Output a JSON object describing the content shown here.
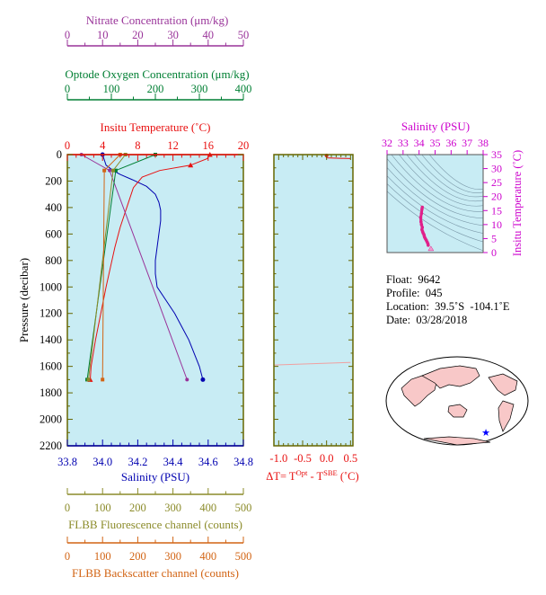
{
  "colors": {
    "nitrate": "#993399",
    "oxygen": "#007f33",
    "temperature": "#e81010",
    "salinity": "#0000b0",
    "fluorescence": "#8b8b2a",
    "backscatter": "#d26414",
    "ts_axis": "#cc00cc",
    "plot_bg": "#c8ecf4",
    "frame": "#666600"
  },
  "axes": {
    "nitrate": {
      "label": "Nitrate Concentration (μm/kg)",
      "ticks": [
        "0",
        "10",
        "20",
        "30",
        "40",
        "50"
      ]
    },
    "oxygen": {
      "label": "Optode Oxygen Concentration (μm/kg)",
      "ticks": [
        "0",
        "100",
        "200",
        "300",
        "400"
      ]
    },
    "temperature": {
      "label": "Insitu Temperature (˚C)",
      "ticks": [
        "0",
        "4",
        "8",
        "12",
        "16",
        "20"
      ]
    },
    "pressure": {
      "label": "Pressure (decibar)",
      "ticks": [
        "0",
        "200",
        "400",
        "600",
        "800",
        "1000",
        "1200",
        "1400",
        "1600",
        "1800",
        "2000",
        "2200"
      ]
    },
    "salinity": {
      "label": "Salinity (PSU)",
      "ticks": [
        "33.8",
        "34.0",
        "34.2",
        "34.4",
        "34.6",
        "34.8"
      ]
    },
    "fluorescence": {
      "label": "FLBB Fluorescence channel (counts)",
      "ticks": [
        "0",
        "100",
        "200",
        "300",
        "400",
        "500"
      ]
    },
    "backscatter": {
      "label": "FLBB Backscatter channel (counts)",
      "ticks": [
        "0",
        "100",
        "200",
        "300",
        "400",
        "500"
      ]
    },
    "delta_t": {
      "label": "ΔT= T",
      "sup1": "Opt",
      "mid": " - T",
      "sup2": "SBE",
      "unit": " (˚C)",
      "ticks": [
        "-1.0",
        "-0.5",
        "0.0",
        "0.5"
      ]
    },
    "ts_salinity": {
      "label": "Salinity (PSU)",
      "ticks": [
        "32",
        "33",
        "34",
        "35",
        "36",
        "37",
        "38"
      ]
    },
    "ts_temperature": {
      "label": "Insitu Temperature (˚C)",
      "ticks": [
        "0",
        "5",
        "10",
        "15",
        "20",
        "25",
        "30",
        "35"
      ]
    }
  },
  "info": {
    "float": "Float:  9642",
    "profile": "Profile:  045",
    "location": "Location:  39.5˚S  -104.1˚E",
    "date": "Date:  03/28/2018"
  },
  "chart_data": [
    {
      "type": "line",
      "title": "",
      "ylabel": "Pressure (decibar)",
      "ylim": [
        2200,
        0
      ],
      "series": [
        {
          "name": "Salinity (PSU)",
          "xlim": [
            33.8,
            34.8
          ],
          "points": [
            [
              34.0,
              0
            ],
            [
              34.01,
              40
            ],
            [
              34.02,
              80
            ],
            [
              34.06,
              120
            ],
            [
              34.1,
              150
            ],
            [
              34.17,
              190
            ],
            [
              34.25,
              240
            ],
            [
              34.3,
              300
            ],
            [
              34.32,
              360
            ],
            [
              34.33,
              420
            ],
            [
              34.33,
              500
            ],
            [
              34.32,
              600
            ],
            [
              34.31,
              700
            ],
            [
              34.3,
              800
            ],
            [
              34.3,
              900
            ],
            [
              34.31,
              1000
            ],
            [
              34.36,
              1100
            ],
            [
              34.41,
              1200
            ],
            [
              34.45,
              1300
            ],
            [
              34.49,
              1400
            ],
            [
              34.52,
              1500
            ],
            [
              34.55,
              1600
            ],
            [
              34.57,
              1700
            ]
          ]
        },
        {
          "name": "Insitu Temperature (˚C)",
          "xlim": [
            0,
            20
          ],
          "points": [
            [
              16.2,
              0
            ],
            [
              15.9,
              30
            ],
            [
              14.0,
              80
            ],
            [
              10.5,
              120
            ],
            [
              8.5,
              170
            ],
            [
              7.5,
              250
            ],
            [
              7.0,
              350
            ],
            [
              6.5,
              450
            ],
            [
              6.0,
              550
            ],
            [
              5.4,
              700
            ],
            [
              4.9,
              850
            ],
            [
              4.4,
              1000
            ],
            [
              3.8,
              1200
            ],
            [
              3.2,
              1400
            ],
            [
              2.7,
              1600
            ],
            [
              2.6,
              1700
            ]
          ]
        },
        {
          "name": "Nitrate Concentration (μm/kg)",
          "xlim": [
            0,
            50
          ],
          "points": [
            [
              4,
              0
            ],
            [
              12,
              120
            ],
            [
              34,
              1700
            ]
          ]
        },
        {
          "name": "Optode Oxygen Concentration (μm/kg)",
          "xlim": [
            0,
            400
          ],
          "points": [
            [
              200,
              0
            ],
            [
              110,
              120
            ],
            [
              45,
              1700
            ]
          ]
        },
        {
          "name": "FLBB Fluorescence channel (counts)",
          "xlim": [
            0,
            500
          ],
          "points": [
            [
              165,
              0
            ],
            [
              130,
              120
            ],
            [
              60,
              1700
            ]
          ]
        },
        {
          "name": "FLBB Backscatter channel (counts)",
          "xlim": [
            0,
            500
          ],
          "points": [
            [
              150,
              0
            ],
            [
              105,
              120
            ],
            [
              100,
              1700
            ]
          ]
        }
      ]
    },
    {
      "type": "line",
      "xlabel": "ΔT= T^Opt - T^SBE (˚C)",
      "xlim": [
        -1.1,
        0.55
      ],
      "ylim": [
        2200,
        0
      ],
      "points": [
        [
          0.0,
          0
        ],
        [
          0.0,
          25
        ],
        [
          0.5,
          30
        ],
        [
          -1.1,
          1590
        ],
        [
          0.5,
          1570
        ]
      ]
    },
    {
      "type": "scatter",
      "xlabel": "Salinity (PSU)",
      "ylabel": "Insitu Temperature (˚C)",
      "xlim": [
        32,
        38
      ],
      "ylim": [
        0,
        35
      ],
      "points": [
        [
          34.2,
          16.2
        ],
        [
          34.18,
          15.5
        ],
        [
          34.15,
          14
        ],
        [
          34.1,
          12.5
        ],
        [
          34.12,
          11
        ],
        [
          34.15,
          10
        ],
        [
          34.2,
          9
        ],
        [
          34.18,
          8.2
        ],
        [
          34.22,
          7.5
        ],
        [
          34.25,
          7
        ],
        [
          34.3,
          6.5
        ],
        [
          34.32,
          6
        ],
        [
          34.35,
          5.4
        ],
        [
          34.4,
          4.9
        ],
        [
          34.45,
          4.4
        ],
        [
          34.5,
          3.8
        ],
        [
          34.55,
          3.2
        ],
        [
          34.57,
          2.6
        ]
      ]
    }
  ]
}
